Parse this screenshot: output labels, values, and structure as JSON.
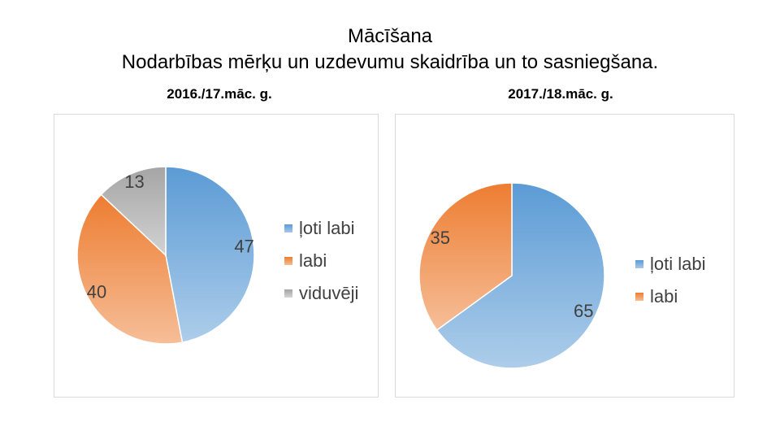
{
  "header": {
    "title": "Mācīšana",
    "subtitle": "Nodarbības mērķu un uzdevumu skaidrība un to sasniegšana."
  },
  "chart_data": [
    {
      "type": "pie",
      "title": "2016./17.māc. g.",
      "categories": [
        "ļoti labi",
        "labi",
        "viduvēji"
      ],
      "values": [
        47,
        40,
        13
      ],
      "colors": [
        "#5b9bd5",
        "#ed7d31",
        "#a5a5a5"
      ],
      "legend": "right"
    },
    {
      "type": "pie",
      "title": "2017./18.māc. g.",
      "categories": [
        "ļoti labi",
        "labi"
      ],
      "values": [
        65,
        35
      ],
      "colors": [
        "#5b9bd5",
        "#ed7d31"
      ],
      "legend": "right"
    }
  ]
}
